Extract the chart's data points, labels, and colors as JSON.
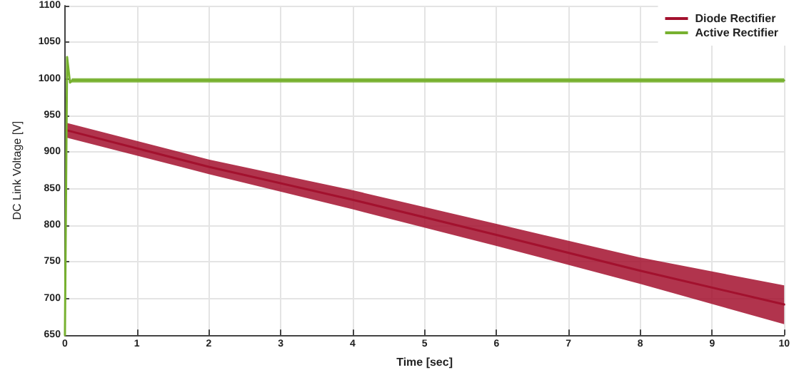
{
  "chart_data": {
    "type": "line",
    "xlabel": "Time [sec]",
    "ylabel": "DC Link Voltage [V]",
    "xlim": [
      0,
      10
    ],
    "xticks": [
      0,
      1,
      2,
      3,
      4,
      5,
      6,
      7,
      8,
      9,
      10
    ],
    "ylim": [
      650,
      1100
    ],
    "yticks": [
      650,
      700,
      750,
      800,
      850,
      900,
      950,
      1000,
      1050,
      1100
    ],
    "grid": true,
    "legend": "top right",
    "marker": "none",
    "line_style": "solid",
    "series": [
      {
        "name": "Diode Rectifier",
        "color": "#a3112e",
        "x": [
          0.02,
          2,
          4,
          6,
          8,
          10
        ],
        "values": [
          930,
          880,
          835,
          787,
          738,
          692
        ],
        "lower": [
          920,
          870,
          822,
          772,
          720,
          665
        ],
        "upper": [
          940,
          890,
          848,
          802,
          756,
          718
        ]
      },
      {
        "name": "Active Rectifier",
        "color": "#77b12f",
        "x": [
          0,
          0.03,
          0.07,
          0.1,
          10
        ],
        "values": [
          650,
          1030,
          995,
          998,
          998
        ],
        "lower": [
          650,
          1030,
          995,
          995,
          995
        ],
        "upper": [
          650,
          1030,
          995,
          1001,
          1001
        ]
      }
    ]
  }
}
